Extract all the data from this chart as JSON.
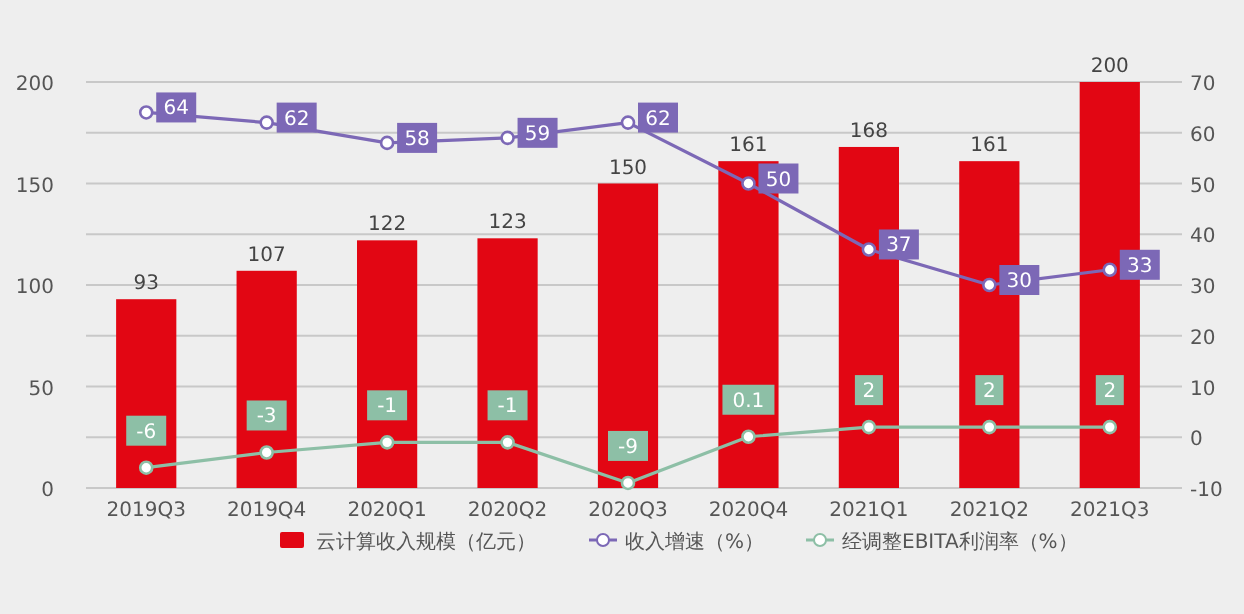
{
  "chart_data": {
    "type": "bar",
    "categories": [
      "2019Q3",
      "2019Q4",
      "2020Q1",
      "2020Q2",
      "2020Q3",
      "2020Q4",
      "2021Q1",
      "2021Q2",
      "2021Q3"
    ],
    "series": [
      {
        "name": "云计算收入规模（亿元）",
        "color": "#e20613",
        "values": [
          93,
          107,
          122,
          123,
          150,
          161,
          168,
          161,
          200
        ]
      },
      {
        "name": "收入增速（%）",
        "type": "line",
        "axis": "y2",
        "color": "#7c68b6",
        "values": [
          64,
          62,
          58,
          59,
          62,
          50,
          37,
          30,
          33
        ]
      },
      {
        "name": "经调整EBITA利润率（%）",
        "type": "line",
        "axis": "y2",
        "color": "#8dbfa6",
        "values": [
          -6,
          -3,
          -1,
          -1,
          -9,
          0.1,
          2,
          2,
          2
        ]
      }
    ],
    "ylim": [
      0,
      200
    ],
    "yticks": [
      0,
      50,
      100,
      150,
      200
    ],
    "y2lim": [
      -10,
      70
    ],
    "y2ticks": [
      -10,
      0,
      10,
      20,
      30,
      40,
      50,
      60,
      70
    ],
    "grid": true,
    "legend": "bottom",
    "marker": "circle",
    "data_labels": true
  }
}
